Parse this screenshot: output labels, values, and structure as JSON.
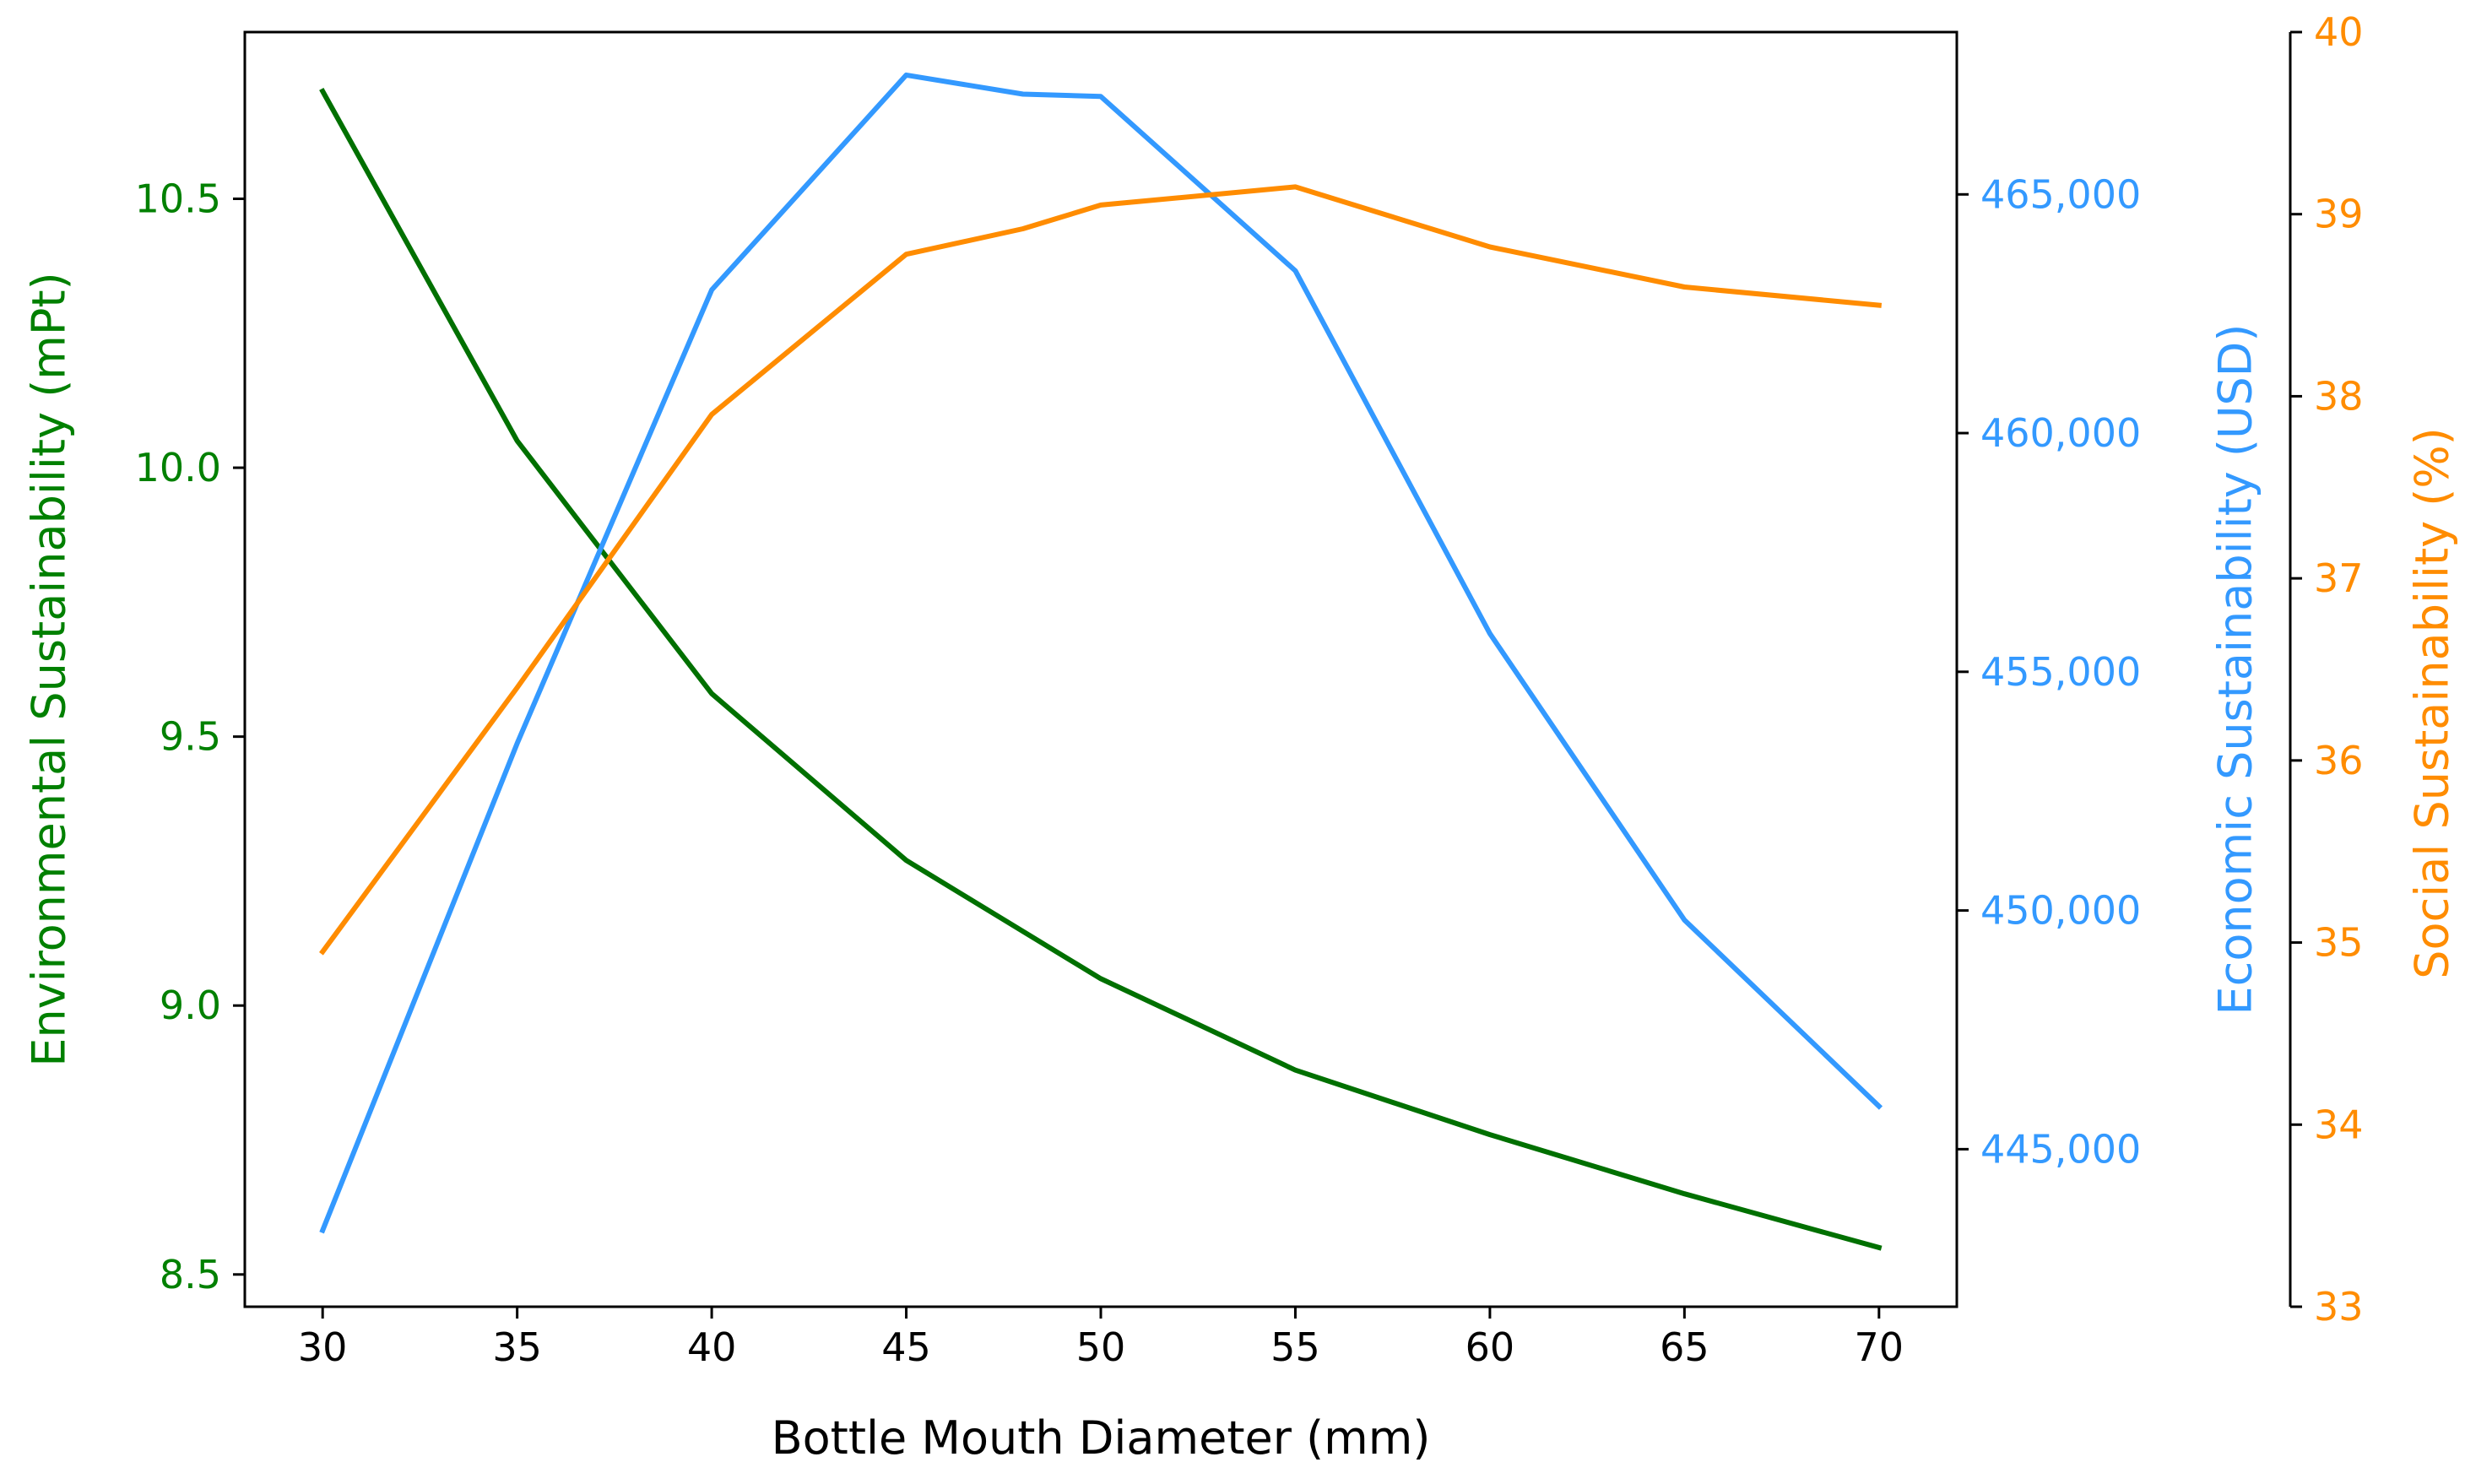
{
  "chart_data": {
    "type": "line",
    "title": "",
    "xlabel": "Bottle Mouth Diameter (mm)",
    "xlim": [
      28,
      72
    ],
    "xticks": [
      30,
      35,
      40,
      45,
      50,
      55,
      60,
      65,
      70
    ],
    "axes": [
      {
        "id": "env",
        "side": "left",
        "label": "Environmental Sustainability (mPt)",
        "color": "#008000",
        "ylim": [
          8.44,
          10.81
        ],
        "ticks": [
          8.5,
          9.0,
          9.5,
          10.0,
          10.5
        ],
        "tick_labels": [
          "8.5",
          "9.0",
          "9.5",
          "10.0",
          "10.5"
        ]
      },
      {
        "id": "econ",
        "side": "right",
        "label": "Economic Sustainability (USD)",
        "color": "#3399FF",
        "ylim": [
          441700,
          468400
        ],
        "ticks": [
          445000,
          450000,
          455000,
          460000,
          465000
        ],
        "tick_labels": [
          "445,000",
          "450,000",
          "455,000",
          "460,000",
          "465,000"
        ]
      },
      {
        "id": "soc",
        "side": "right-outer",
        "label": "Social Sustainability (%)",
        "color": "#FF8C00",
        "ylim": [
          33,
          40
        ],
        "ticks": [
          33,
          34,
          35,
          36,
          37,
          38,
          39,
          40
        ],
        "tick_labels": [
          "33",
          "34",
          "35",
          "36",
          "37",
          "38",
          "39",
          "40"
        ]
      }
    ],
    "series": [
      {
        "axis": "env",
        "color": "#007000",
        "points": [
          [
            30,
            10.7
          ],
          [
            35,
            10.05
          ],
          [
            40,
            9.58
          ],
          [
            45,
            9.27
          ],
          [
            50,
            9.05
          ],
          [
            55,
            8.88
          ],
          [
            60,
            8.76
          ],
          [
            65,
            8.65
          ],
          [
            70,
            8.55
          ]
        ]
      },
      {
        "axis": "econ",
        "color": "#3399FF",
        "points": [
          [
            30,
            443300
          ],
          [
            35,
            453500
          ],
          [
            40,
            463000
          ],
          [
            45,
            467500
          ],
          [
            48,
            467100
          ],
          [
            50,
            467050
          ],
          [
            55,
            463400
          ],
          [
            60,
            455800
          ],
          [
            65,
            449800
          ],
          [
            70,
            445900
          ]
        ]
      },
      {
        "axis": "soc",
        "color": "#FF8C00",
        "points": [
          [
            30,
            34.95
          ],
          [
            35,
            36.4
          ],
          [
            40,
            37.9
          ],
          [
            45,
            38.78
          ],
          [
            48,
            38.92
          ],
          [
            50,
            39.05
          ],
          [
            55,
            39.15
          ],
          [
            60,
            38.82
          ],
          [
            65,
            38.6
          ],
          [
            70,
            38.5
          ]
        ]
      }
    ]
  }
}
